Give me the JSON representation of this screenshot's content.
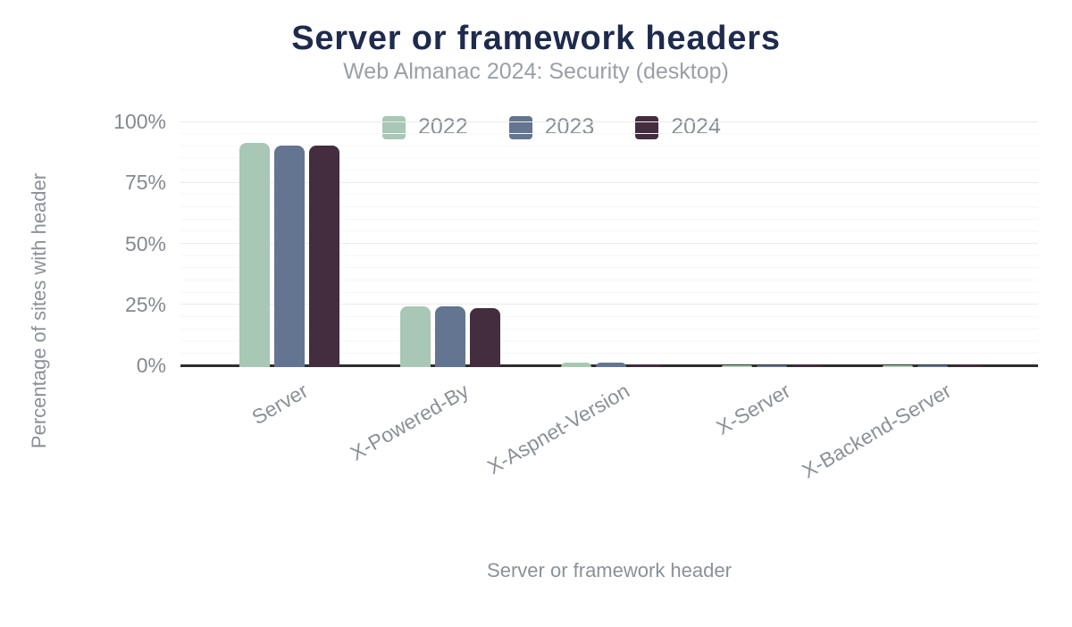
{
  "chart_data": {
    "type": "bar",
    "title": "Server or framework headers",
    "subtitle": "Web Almanac 2024: Security (desktop)",
    "xlabel": "Server or framework header",
    "ylabel": "Percentage of sites with header",
    "categories": [
      "Server",
      "X-Powered-By",
      "X-Aspnet-Version",
      "X-Server",
      "X-Backend-Server"
    ],
    "series": [
      {
        "name": "2022",
        "color": "#a8c7b5",
        "values": [
          92,
          25,
          2,
          0.2,
          0.2
        ]
      },
      {
        "name": "2023",
        "color": "#637590",
        "values": [
          91,
          25,
          2,
          0.2,
          0.2
        ]
      },
      {
        "name": "2024",
        "color": "#432d3f",
        "values": [
          91,
          24,
          1,
          0.2,
          0.2
        ]
      }
    ],
    "ytick_labels": [
      "0%",
      "25%",
      "50%",
      "75%",
      "100%"
    ],
    "ylim": [
      0,
      100
    ],
    "grid": "horizontal; minor every 5%, major every 25%",
    "legend_position": "top"
  },
  "colors": {
    "title": "#1e2b4d",
    "subtitle": "#9aa0a6",
    "axis_text": "#85898f",
    "axis_line": "#2e2e2e",
    "gridline_major": "#ebebeb",
    "gridline_minor": "#f7f7f7",
    "background": "#ffffff"
  }
}
